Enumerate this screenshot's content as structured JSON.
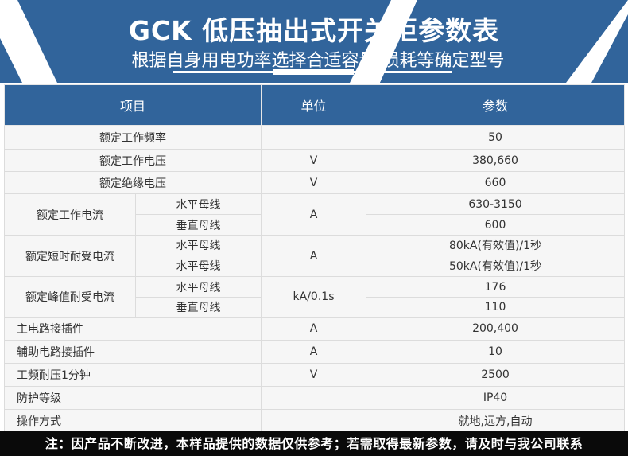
{
  "header": {
    "title": "GCK 低压抽出式开关柜参数表",
    "subtitle": "根据自身用电功率选择合适容量,损耗等确定型号"
  },
  "table": {
    "columns": [
      "项目",
      "单位",
      "参数"
    ],
    "rows": {
      "freq": {
        "item": "额定工作频率",
        "unit": "",
        "value": "50"
      },
      "voltage": {
        "item": "额定工作电压",
        "unit": "V",
        "value": "380,660"
      },
      "insulation": {
        "item": "额定绝缘电压",
        "unit": "V",
        "value": "660"
      },
      "current": {
        "item": "额定工作电流",
        "unit": "A",
        "sub": [
          {
            "label": "水平母线",
            "value": "630-3150"
          },
          {
            "label": "垂直母线",
            "value": "600"
          }
        ]
      },
      "short": {
        "item": "额定短时耐受电流",
        "unit": "A",
        "sub": [
          {
            "label": "水平母线",
            "value": "80kA(有效值)/1秒"
          },
          {
            "label": "水平母线",
            "value": "50kA(有效值)/1秒"
          }
        ]
      },
      "peak": {
        "item": "额定峰值耐受电流",
        "unit": "kA/0.1s",
        "sub": [
          {
            "label": "水平母线",
            "value": "176"
          },
          {
            "label": "垂直母线",
            "value": "110"
          }
        ]
      },
      "main_plug": {
        "item": "主电路接插件",
        "unit": "A",
        "value": "200,400"
      },
      "aux_plug": {
        "item": "辅助电路接插件",
        "unit": "A",
        "value": "10"
      },
      "withstand": {
        "item": "工频耐压1分钟",
        "unit": "V",
        "value": "2500"
      },
      "protection": {
        "item": "防护等级",
        "unit": "",
        "value": "IP40"
      },
      "operation": {
        "item": "操作方式",
        "unit": "",
        "value": "就地,远方,自动"
      }
    }
  },
  "footer": {
    "note": "注：因产品不断改进，本样品提供的数据仅供参考；若需取得最新参数，请及时与我公司联系"
  },
  "colors": {
    "brand_blue": "#31649b",
    "footer_bg": "#0a0a0a"
  }
}
